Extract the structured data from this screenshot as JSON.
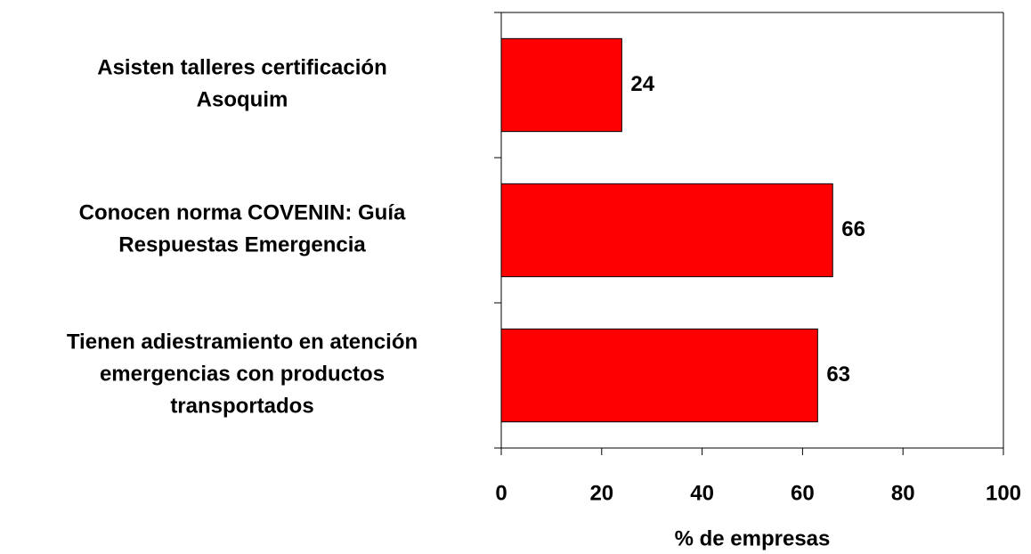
{
  "chart_data": {
    "type": "bar",
    "orientation": "horizontal",
    "x_label": "% de empresas",
    "categories": [
      "Asisten talleres certificación\nAsoquim",
      "Conocen norma COVENIN: Guía\nRespuestas Emergencia",
      "Tienen adiestramiento en atención\nemergencias con productos\ntransportados"
    ],
    "values": [
      24,
      66,
      63
    ],
    "color": "#ff0000",
    "xlim": [
      0,
      100
    ],
    "xticks": [
      0,
      20,
      40,
      60,
      80,
      100
    ],
    "grid": false
  }
}
